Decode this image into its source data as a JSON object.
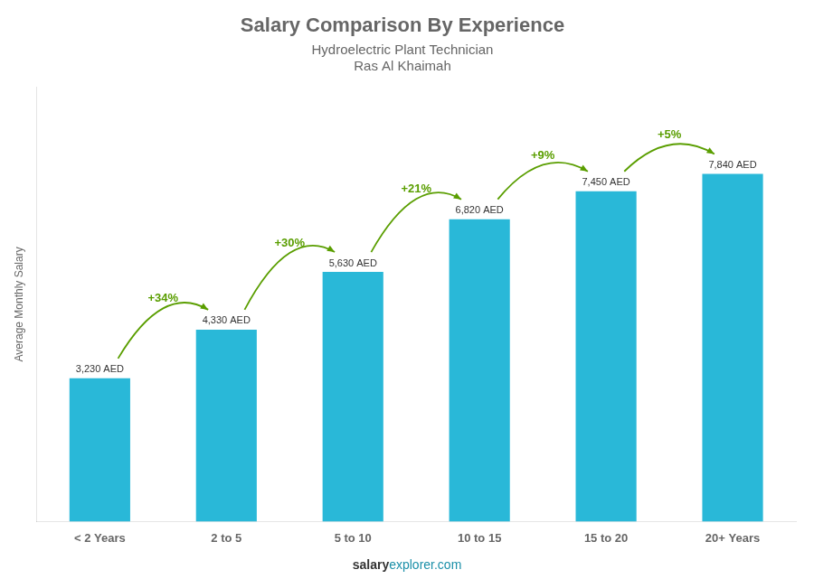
{
  "chart_data": {
    "type": "bar",
    "title": "Salary Comparison By Experience",
    "subtitle": "Hydroelectric Plant Technician",
    "annotations": [
      "Ras Al Khaimah"
    ],
    "watermark": [
      "salary",
      "explorer.com"
    ],
    "ylabel": "Average Monthly Salary",
    "categories": [
      "< 2 Years",
      "2 to 5",
      "5 to 10",
      "10 to 15",
      "15 to 20",
      "20+ Years"
    ],
    "values": [
      3230,
      4330,
      5630,
      6820,
      7450,
      7840
    ],
    "value_labels": [
      "3,230 AED",
      "4,330 AED",
      "5,630 AED",
      "6,820 AED",
      "7,450 AED",
      "7,840 AED"
    ],
    "data_labels": true,
    "change_labels": [
      "+34%",
      "+30%",
      "+21%",
      "+9%",
      "+5%"
    ],
    "color": "#29b8d8",
    "ylim": [
      0,
      9800
    ],
    "yticks": [],
    "tick_labels": "x",
    "grid": false
  }
}
